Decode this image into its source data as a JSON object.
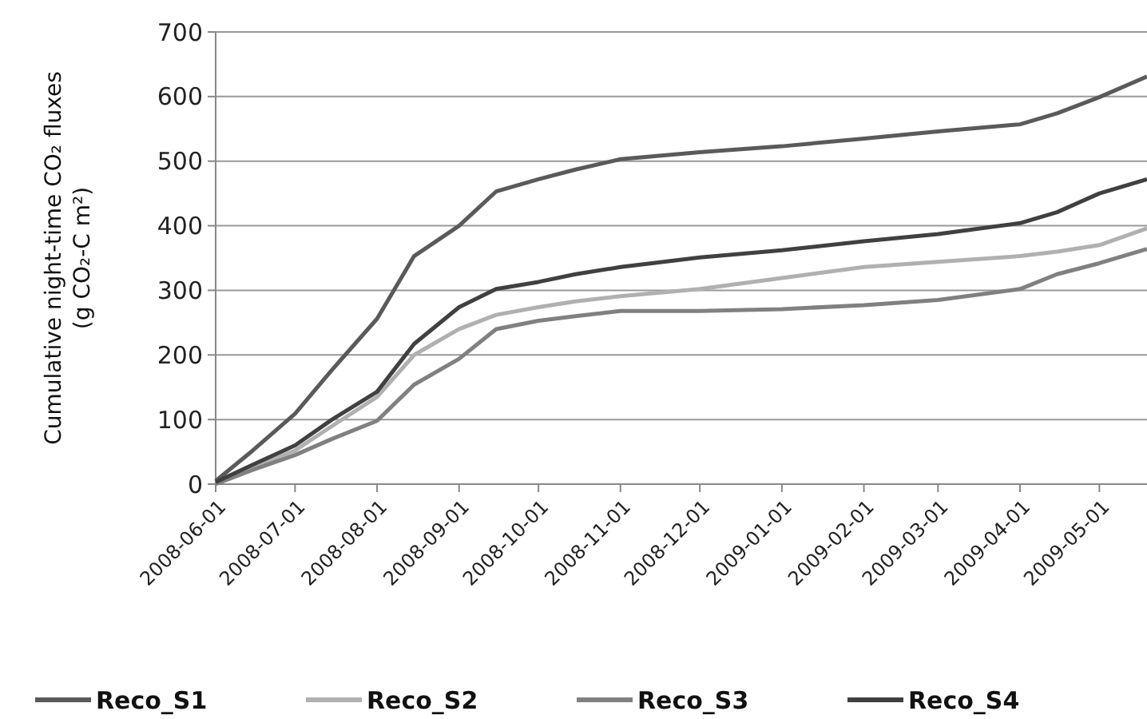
{
  "chart_data": {
    "type": "line",
    "ylabel": "Cumulative night-time CO₂ fluxes\n(g CO₂-C m²)",
    "x": [
      "2008-06-01",
      "2008-06-15",
      "2008-07-01",
      "2008-07-15",
      "2008-08-01",
      "2008-08-15",
      "2008-09-01",
      "2008-09-15",
      "2008-10-01",
      "2008-10-15",
      "2008-11-01",
      "2008-12-01",
      "2009-01-01",
      "2009-02-01",
      "2009-03-01",
      "2009-04-01",
      "2009-04-15",
      "2009-05-01",
      "2009-05-19"
    ],
    "series": [
      {
        "name": "Reco_S1",
        "color": "#5a5a5a",
        "values": [
          5,
          52,
          109,
          177,
          256,
          353,
          400,
          453,
          472,
          487,
          503,
          514,
          523,
          535,
          546,
          557,
          574,
          599,
          631
        ]
      },
      {
        "name": "Reco_S2",
        "color": "#b0b0b0",
        "values": [
          2,
          26,
          52,
          90,
          135,
          200,
          240,
          262,
          274,
          283,
          291,
          302,
          319,
          336,
          344,
          353,
          360,
          370,
          396
        ]
      },
      {
        "name": "Reco_S3",
        "color": "#808080",
        "values": [
          0,
          22,
          45,
          70,
          98,
          154,
          194,
          240,
          253,
          260,
          268,
          268,
          271,
          277,
          285,
          302,
          325,
          342,
          364
        ]
      },
      {
        "name": "Reco_S4",
        "color": "#404040",
        "values": [
          3,
          30,
          60,
          100,
          143,
          217,
          274,
          302,
          313,
          325,
          336,
          351,
          362,
          376,
          387,
          404,
          421,
          450,
          472
        ]
      }
    ],
    "xlim": [
      "2008-06-01",
      "2009-05-19"
    ],
    "xticks": [
      "2008-06-01",
      "2008-07-01",
      "2008-08-01",
      "2008-09-01",
      "2008-10-01",
      "2008-11-01",
      "2008-12-01",
      "2009-01-01",
      "2009-02-01",
      "2009-03-01",
      "2009-04-01",
      "2009-05-01"
    ],
    "ylim": [
      0,
      700
    ],
    "yticks": [
      0,
      100,
      200,
      300,
      400,
      500,
      600,
      700
    ],
    "grid": "y",
    "legend": "bottom",
    "marker": "none",
    "line_style": "solid"
  }
}
